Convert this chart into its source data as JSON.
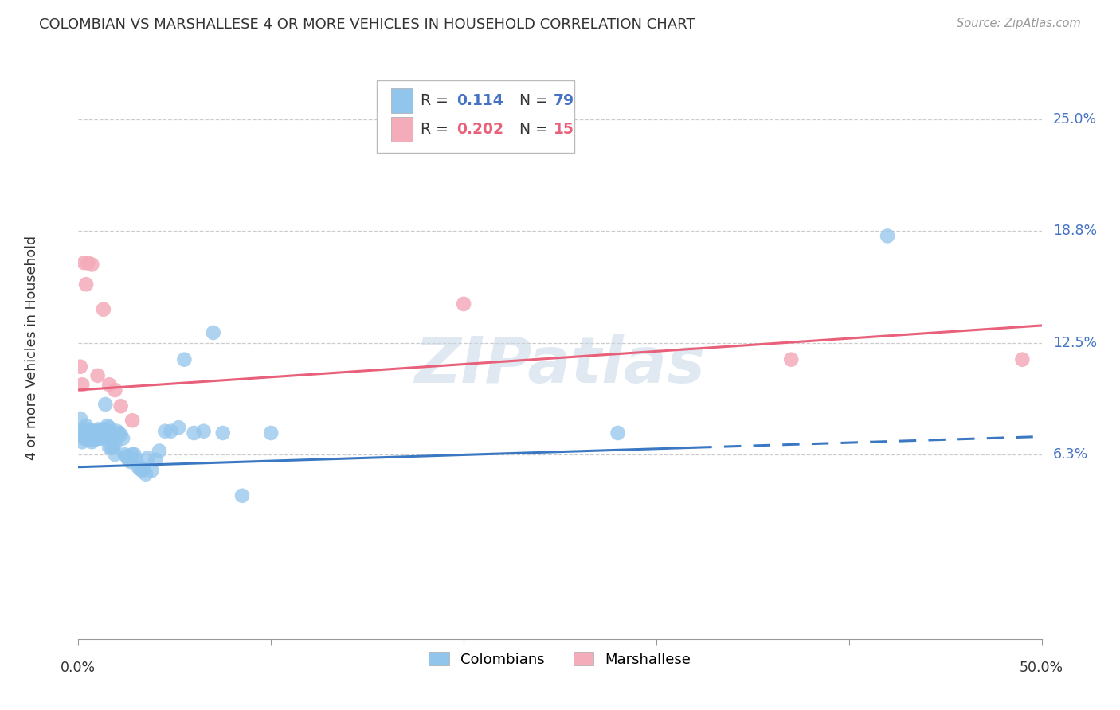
{
  "title": "COLOMBIAN VS MARSHALLESE 4 OR MORE VEHICLES IN HOUSEHOLD CORRELATION CHART",
  "source": "Source: ZipAtlas.com",
  "ylabel": "4 or more Vehicles in Household",
  "ytick_values": [
    0.063,
    0.125,
    0.188,
    0.25
  ],
  "ytick_labels": [
    "6.3%",
    "12.5%",
    "18.8%",
    "25.0%"
  ],
  "xlim": [
    0.0,
    0.5
  ],
  "ylim": [
    -0.04,
    0.285
  ],
  "blue_color": "#92C5EC",
  "pink_color": "#F4ABBA",
  "line_blue": "#3B78C3",
  "line_pink": "#E8607A",
  "blue_line_solid_end": 0.32,
  "blue_line_x0": 0.0,
  "blue_line_y0": 0.056,
  "blue_line_x1": 0.5,
  "blue_line_y1": 0.073,
  "pink_line_x0": 0.0,
  "pink_line_y0": 0.099,
  "pink_line_x1": 0.5,
  "pink_line_y1": 0.135,
  "legend_text_r1": "R =  0.114   N = 79",
  "legend_text_r2": "R =  0.202   N = 15",
  "col_scatter_x": [
    0.001,
    0.001,
    0.002,
    0.002,
    0.002,
    0.003,
    0.003,
    0.003,
    0.004,
    0.004,
    0.004,
    0.005,
    0.005,
    0.005,
    0.006,
    0.006,
    0.006,
    0.007,
    0.007,
    0.007,
    0.007,
    0.008,
    0.008,
    0.008,
    0.009,
    0.009,
    0.01,
    0.01,
    0.01,
    0.011,
    0.011,
    0.012,
    0.012,
    0.013,
    0.013,
    0.014,
    0.014,
    0.015,
    0.015,
    0.016,
    0.016,
    0.017,
    0.017,
    0.018,
    0.018,
    0.019,
    0.019,
    0.02,
    0.021,
    0.022,
    0.023,
    0.024,
    0.025,
    0.026,
    0.027,
    0.028,
    0.029,
    0.03,
    0.031,
    0.032,
    0.033,
    0.034,
    0.035,
    0.036,
    0.038,
    0.04,
    0.042,
    0.045,
    0.048,
    0.052,
    0.055,
    0.06,
    0.065,
    0.07,
    0.075,
    0.085,
    0.1,
    0.28,
    0.42
  ],
  "col_scatter_y": [
    0.083,
    0.075,
    0.077,
    0.074,
    0.07,
    0.073,
    0.072,
    0.076,
    0.074,
    0.072,
    0.079,
    0.077,
    0.073,
    0.071,
    0.076,
    0.074,
    0.072,
    0.076,
    0.074,
    0.072,
    0.07,
    0.075,
    0.073,
    0.071,
    0.076,
    0.072,
    0.077,
    0.075,
    0.073,
    0.076,
    0.072,
    0.074,
    0.072,
    0.077,
    0.073,
    0.091,
    0.076,
    0.079,
    0.076,
    0.078,
    0.067,
    0.067,
    0.074,
    0.073,
    0.067,
    0.069,
    0.063,
    0.076,
    0.075,
    0.074,
    0.072,
    0.063,
    0.062,
    0.06,
    0.059,
    0.063,
    0.063,
    0.06,
    0.056,
    0.055,
    0.054,
    0.055,
    0.052,
    0.061,
    0.054,
    0.06,
    0.065,
    0.076,
    0.076,
    0.078,
    0.116,
    0.075,
    0.076,
    0.131,
    0.075,
    0.04,
    0.075,
    0.075,
    0.185
  ],
  "marsh_scatter_x": [
    0.001,
    0.002,
    0.003,
    0.004,
    0.005,
    0.007,
    0.01,
    0.013,
    0.016,
    0.019,
    0.022,
    0.028,
    0.2,
    0.37,
    0.49
  ],
  "marsh_scatter_y": [
    0.112,
    0.102,
    0.17,
    0.158,
    0.17,
    0.169,
    0.107,
    0.144,
    0.102,
    0.099,
    0.09,
    0.082,
    0.147,
    0.116,
    0.116
  ]
}
